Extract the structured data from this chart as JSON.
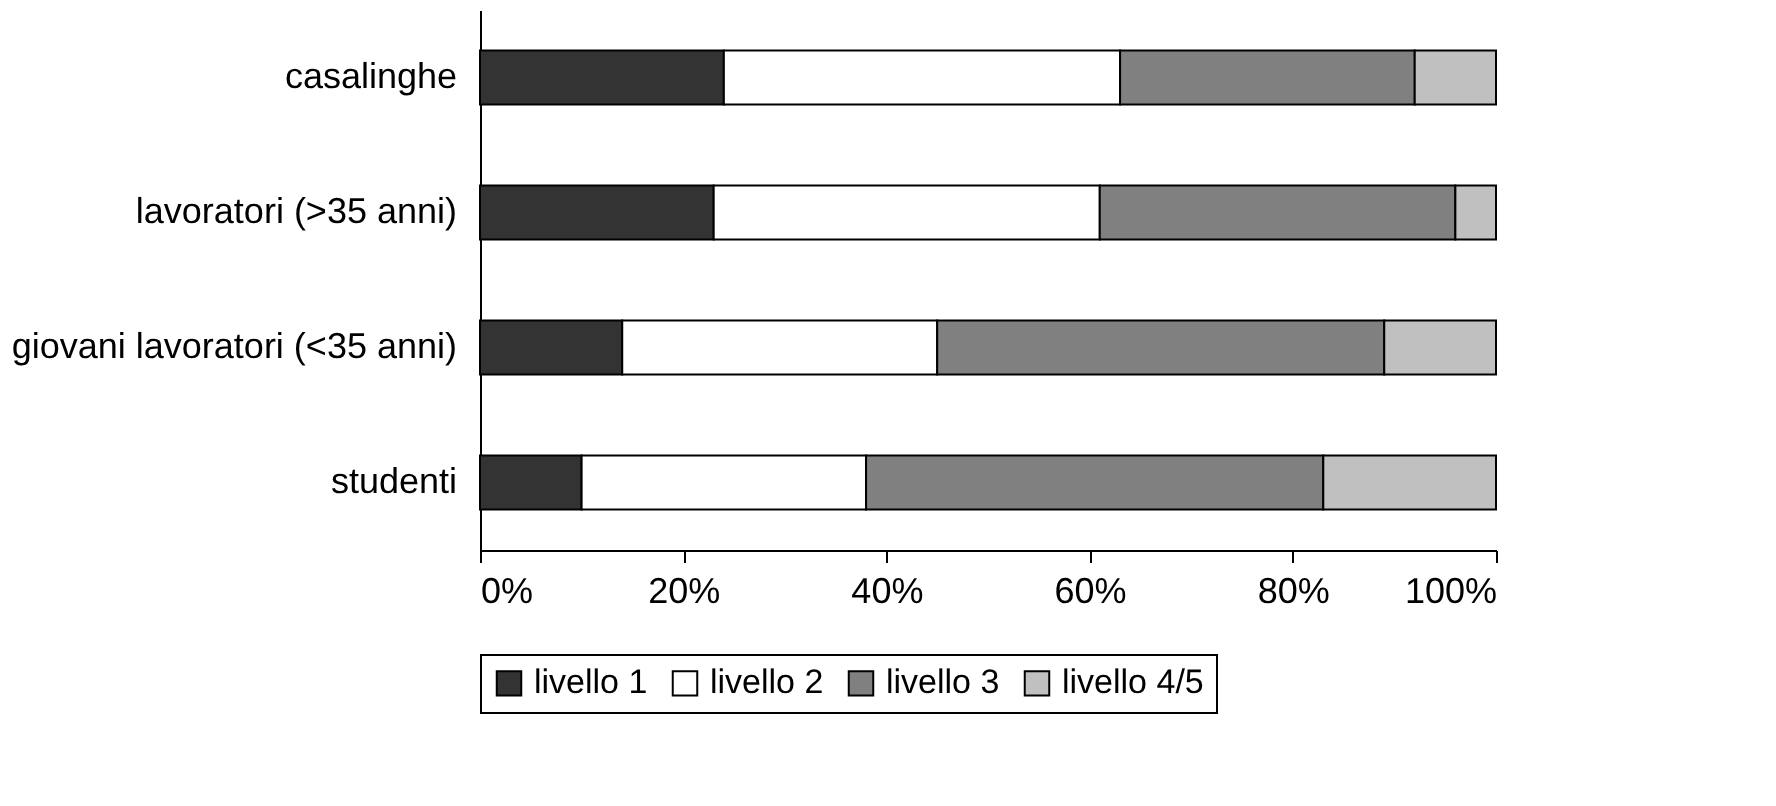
{
  "chart_data": {
    "type": "bar",
    "orientation": "horizontal",
    "stacked": true,
    "categories": [
      "casalinghe",
      "lavoratori (>35 anni)",
      "giovani lavoratori (<35 anni)",
      "studenti"
    ],
    "series": [
      {
        "name": "livello 1",
        "color": "#333333",
        "values": [
          24,
          23,
          14,
          10
        ]
      },
      {
        "name": "livello 2",
        "color": "#ffffff",
        "values": [
          39,
          38,
          31,
          28
        ]
      },
      {
        "name": "livello 3",
        "color": "#808080",
        "values": [
          29,
          35,
          44,
          45
        ]
      },
      {
        "name": "livello 4/5",
        "color": "#c0c0c0",
        "values": [
          8,
          4,
          11,
          17
        ]
      }
    ],
    "xlim": [
      0,
      100
    ],
    "xticks": [
      {
        "value": 0,
        "label": "0%"
      },
      {
        "value": 20,
        "label": "20%"
      },
      {
        "value": 40,
        "label": "40%"
      },
      {
        "value": 60,
        "label": "60%"
      },
      {
        "value": 80,
        "label": "80%"
      },
      {
        "value": 100,
        "label": "100%"
      }
    ],
    "grid": false,
    "legend": "bottom"
  }
}
